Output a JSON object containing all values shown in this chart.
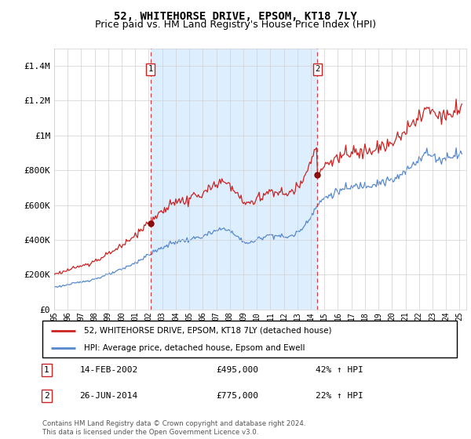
{
  "title": "52, WHITEHORSE DRIVE, EPSOM, KT18 7LY",
  "subtitle": "Price paid vs. HM Land Registry's House Price Index (HPI)",
  "red_label": "52, WHITEHORSE DRIVE, EPSOM, KT18 7LY (detached house)",
  "blue_label": "HPI: Average price, detached house, Epsom and Ewell",
  "annotation1": {
    "num": "1",
    "date": "14-FEB-2002",
    "price": "£495,000",
    "hpi": "42% ↑ HPI",
    "x_year": 2002.12
  },
  "annotation2": {
    "num": "2",
    "date": "26-JUN-2014",
    "price": "£775,000",
    "hpi": "22% ↑ HPI",
    "x_year": 2014.49
  },
  "purchase1_value": 495000,
  "purchase2_value": 775000,
  "ylim": [
    0,
    1500000
  ],
  "yticks": [
    0,
    200000,
    400000,
    600000,
    800000,
    1000000,
    1200000,
    1400000
  ],
  "ytick_labels": [
    "£0",
    "£200K",
    "£400K",
    "£600K",
    "£800K",
    "£1M",
    "£1.2M",
    "£1.4M"
  ],
  "xlim_start": 1995,
  "xlim_end": 2025.5,
  "footer": "Contains HM Land Registry data © Crown copyright and database right 2024.\nThis data is licensed under the Open Government Licence v3.0.",
  "background_color": "#ffffff",
  "grid_color": "#d0d0d0",
  "red_color": "#cc2222",
  "blue_color": "#5588cc",
  "shade_color": "#ddeeff",
  "shade_alpha": 0.5,
  "title_fontsize": 10,
  "subtitle_fontsize": 9
}
